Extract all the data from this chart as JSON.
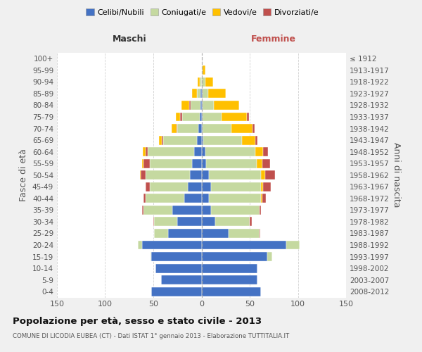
{
  "age_groups": [
    "0-4",
    "5-9",
    "10-14",
    "15-19",
    "20-24",
    "25-29",
    "30-34",
    "35-39",
    "40-44",
    "45-49",
    "50-54",
    "55-59",
    "60-64",
    "65-69",
    "70-74",
    "75-79",
    "80-84",
    "85-89",
    "90-94",
    "95-99",
    "100+"
  ],
  "birth_years": [
    "2008-2012",
    "2003-2007",
    "1998-2002",
    "1993-1997",
    "1988-1992",
    "1983-1987",
    "1978-1982",
    "1973-1977",
    "1968-1972",
    "1963-1967",
    "1958-1962",
    "1953-1957",
    "1948-1952",
    "1943-1947",
    "1938-1942",
    "1933-1937",
    "1928-1932",
    "1923-1927",
    "1918-1922",
    "1913-1917",
    "≤ 1912"
  ],
  "colors": {
    "celibe": "#4472c4",
    "coniugato": "#c5d9a0",
    "vedovo": "#ffc000",
    "divorziato": "#c0504d"
  },
  "maschi": {
    "celibe": [
      52,
      42,
      48,
      52,
      62,
      35,
      25,
      30,
      18,
      14,
      12,
      10,
      8,
      5,
      3,
      2,
      1,
      1,
      0,
      0,
      0
    ],
    "coniugato": [
      0,
      0,
      0,
      1,
      4,
      14,
      24,
      30,
      40,
      40,
      46,
      44,
      48,
      35,
      22,
      18,
      10,
      4,
      2,
      0,
      0
    ],
    "vedovo": [
      0,
      0,
      0,
      0,
      0,
      0,
      0,
      0,
      0,
      0,
      1,
      2,
      3,
      3,
      5,
      5,
      8,
      5,
      2,
      0,
      0
    ],
    "divorziato": [
      0,
      0,
      0,
      0,
      0,
      0,
      1,
      2,
      2,
      4,
      5,
      6,
      2,
      1,
      1,
      2,
      2,
      0,
      0,
      0,
      0
    ]
  },
  "femmine": {
    "nubile": [
      62,
      58,
      58,
      68,
      88,
      28,
      14,
      10,
      8,
      10,
      8,
      5,
      4,
      2,
      1,
      1,
      1,
      1,
      0,
      0,
      0
    ],
    "coniugata": [
      0,
      0,
      0,
      5,
      14,
      32,
      36,
      50,
      54,
      52,
      54,
      52,
      52,
      40,
      30,
      20,
      12,
      6,
      4,
      1,
      0
    ],
    "vedova": [
      0,
      0,
      0,
      0,
      0,
      0,
      0,
      0,
      1,
      2,
      4,
      6,
      8,
      14,
      22,
      26,
      26,
      18,
      8,
      3,
      0
    ],
    "divorziata": [
      0,
      0,
      0,
      0,
      0,
      1,
      2,
      2,
      4,
      8,
      10,
      8,
      5,
      2,
      2,
      2,
      0,
      0,
      0,
      0,
      0
    ]
  },
  "xlim": 150,
  "title": "Popolazione per età, sesso e stato civile - 2013",
  "subtitle": "COMUNE DI LICODIA EUBEA (CT) - Dati ISTAT 1° gennaio 2013 - Elaborazione TUTTITALIA.IT",
  "ylabel_left": "Fasce di età",
  "ylabel_right": "Anni di nascita",
  "header_maschi": "Maschi",
  "header_femmine": "Femmine",
  "legend_labels": [
    "Celibi/Nubili",
    "Coniugati/e",
    "Vedovi/e",
    "Divorziati/e"
  ],
  "bg_color": "#f0f0f0",
  "plot_bg": "#ffffff"
}
